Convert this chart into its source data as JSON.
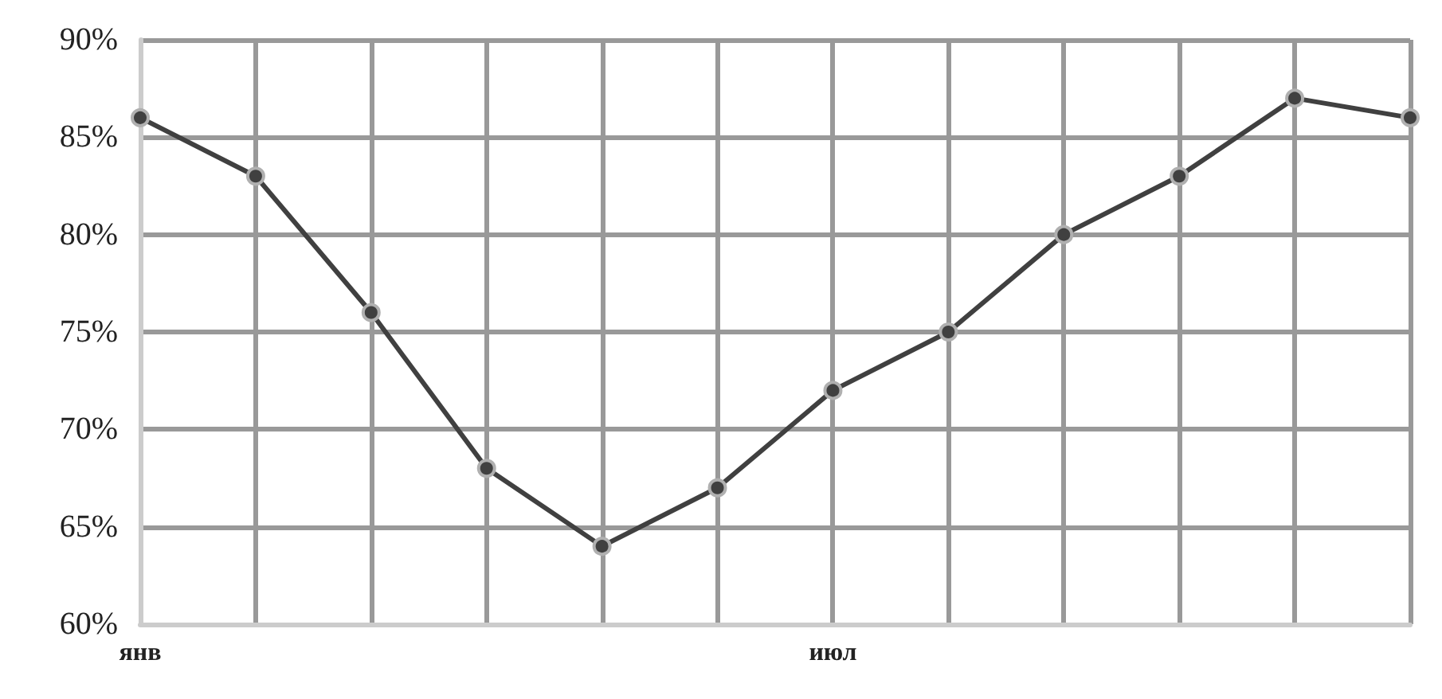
{
  "chart_data": {
    "type": "line",
    "categories": [
      "янв",
      null,
      null,
      null,
      null,
      null,
      "июл",
      null,
      null,
      null,
      null,
      null
    ],
    "series": [
      {
        "color": "#404040",
        "values": [
          86,
          83,
          76,
          68,
          64,
          67,
          72,
          75,
          80,
          83,
          87,
          86
        ]
      }
    ],
    "ylim": [
      60,
      90
    ],
    "yticks": [
      {
        "value": 60,
        "label": "60%"
      },
      {
        "value": 65,
        "label": "65%"
      },
      {
        "value": 70,
        "label": "70%"
      },
      {
        "value": 75,
        "label": "75%"
      },
      {
        "value": 80,
        "label": "80%"
      },
      {
        "value": 85,
        "label": "85%"
      },
      {
        "value": 90,
        "label": "90%"
      }
    ],
    "grid": true,
    "marker": "circle",
    "line_style": "solid"
  }
}
